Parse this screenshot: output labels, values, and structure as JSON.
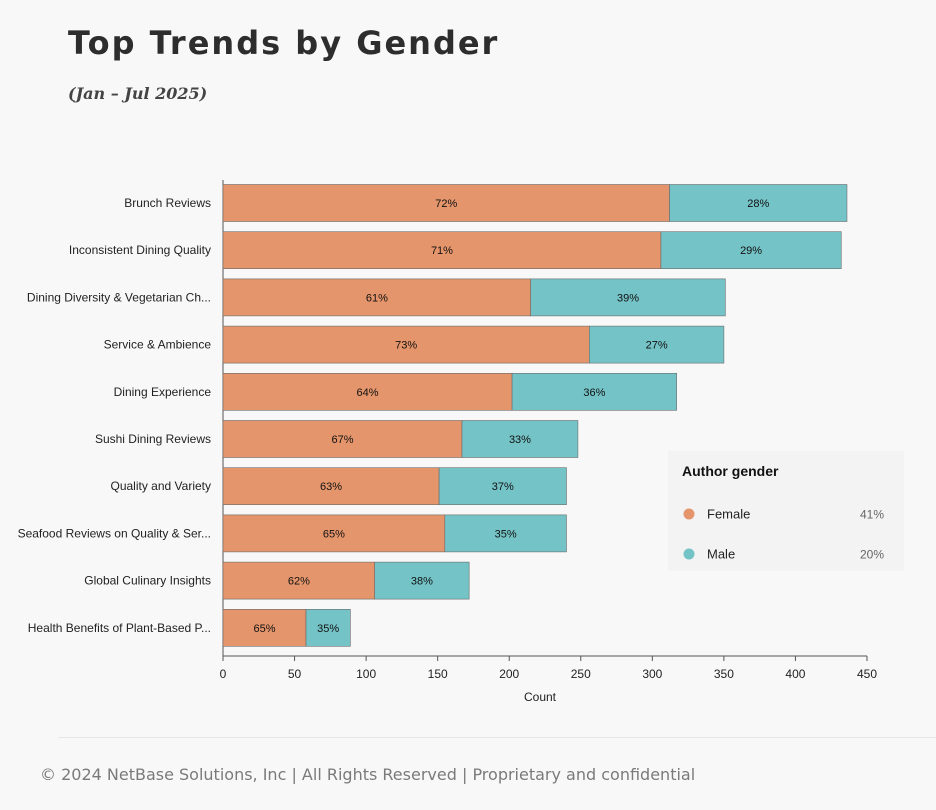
{
  "title": "Top Trends by Gender",
  "subtitle": "(Jan – Jul 2025)",
  "footer": "© 2024 NetBase Solutions, Inc | All Rights Reserved | Proprietary and confidential",
  "colors": {
    "female": "#e5956b",
    "male": "#74c3c7"
  },
  "chart_data": {
    "type": "bar",
    "orientation": "horizontal",
    "stacked": true,
    "categories": [
      "Brunch Reviews",
      "Inconsistent Dining Quality",
      "Dining Diversity & Vegetarian Ch...",
      "Service & Ambience",
      "Dining Experience",
      "Sushi Dining Reviews",
      "Quality and Variety",
      "Seafood Reviews on Quality & Ser...",
      "Global Culinary Insights",
      "Health Benefits of Plant-Based P..."
    ],
    "series": [
      {
        "name": "Female",
        "values": [
          312,
          306,
          215,
          256,
          202,
          167,
          151,
          155,
          106,
          58
        ],
        "labels": [
          "72%",
          "71%",
          "61%",
          "73%",
          "64%",
          "67%",
          "63%",
          "65%",
          "62%",
          "65%"
        ]
      },
      {
        "name": "Male",
        "values": [
          124,
          126,
          136,
          94,
          115,
          81,
          89,
          85,
          66,
          31
        ],
        "labels": [
          "28%",
          "29%",
          "39%",
          "27%",
          "36%",
          "33%",
          "37%",
          "35%",
          "38%",
          "35%"
        ]
      }
    ],
    "xlabel": "Count",
    "ylabel": "",
    "xlim": [
      0,
      450
    ],
    "xticks": [
      0,
      50,
      100,
      150,
      200,
      250,
      300,
      350,
      400,
      450
    ],
    "grid": false,
    "legend": {
      "title": "Author gender",
      "placement": "right",
      "entries": [
        {
          "name": "Female",
          "value": "41%"
        },
        {
          "name": "Male",
          "value": "20%"
        }
      ]
    }
  }
}
